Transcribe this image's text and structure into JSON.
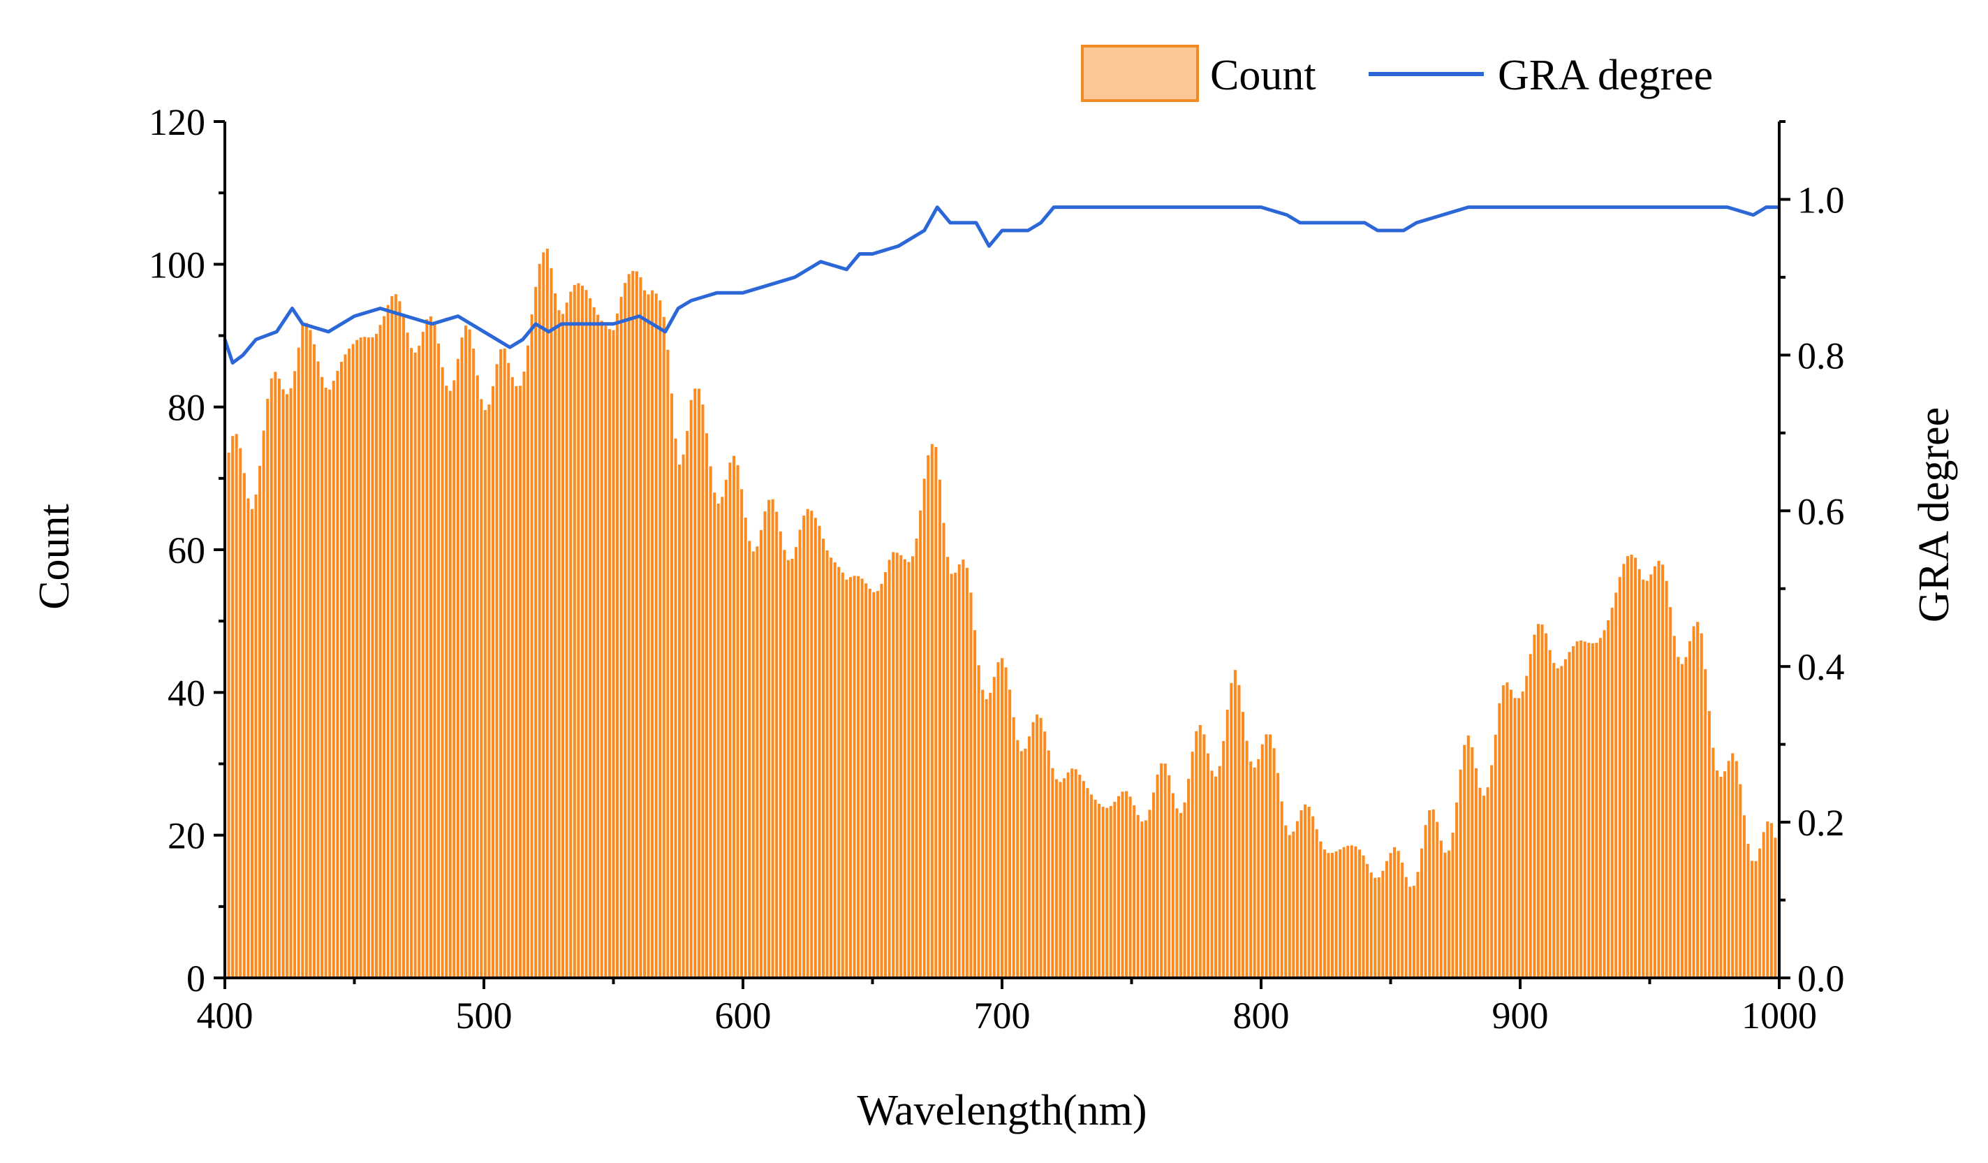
{
  "chart_data": {
    "type": "bar+line",
    "title": "",
    "xlabel": "Wavelength(nm)",
    "ylabel": "Count",
    "y2label": "GRA degree",
    "xlim": [
      400,
      1000
    ],
    "ylim": [
      0,
      120
    ],
    "y2lim": [
      0,
      1.1
    ],
    "x_ticks": [
      400,
      500,
      600,
      700,
      800,
      900,
      1000
    ],
    "y_ticks": [
      0,
      20,
      40,
      60,
      80,
      100,
      120
    ],
    "y2_ticks": [
      0.0,
      0.2,
      0.4,
      0.6,
      0.8,
      1.0
    ],
    "x_tick_labels": [
      "400",
      "500",
      "600",
      "700",
      "800",
      "900",
      "1000"
    ],
    "y_tick_labels": [
      "0",
      "20",
      "40",
      "60",
      "80",
      "100",
      "120"
    ],
    "y2_tick_labels": [
      "0.0",
      "0.2",
      "0.4",
      "0.6",
      "0.8",
      "1.0"
    ],
    "legend": {
      "position": "top-right",
      "entries": [
        "Count",
        "GRA degree"
      ]
    },
    "colors": {
      "count_fill": "#fc8a1f",
      "legend_fill": "#fbc794",
      "legend_edge": "#f08a24",
      "gra_line": "#2b67d6"
    },
    "series": [
      {
        "name": "Count",
        "type": "bar",
        "x": [
          400,
          410,
          420,
          430,
          440,
          450,
          460,
          470,
          480,
          490,
          500,
          510,
          520,
          525,
          530,
          540,
          550,
          560,
          565,
          570,
          575,
          580,
          590,
          600,
          610,
          620,
          630,
          640,
          650,
          660,
          670,
          675,
          680,
          690,
          700,
          710,
          720,
          730,
          740,
          750,
          760,
          770,
          780,
          790,
          800,
          810,
          820,
          830,
          840,
          850,
          860,
          870,
          880,
          890,
          900,
          910,
          920,
          930,
          940,
          945,
          950,
          960,
          970,
          980,
          990,
          1000
        ],
        "values": [
          72,
          70,
          82,
          90,
          84,
          88,
          93,
          93,
          88,
          87,
          85,
          83,
          94,
          102,
          95,
          96,
          91,
          101,
          97,
          88,
          76,
          80,
          72,
          66,
          63,
          62,
          64,
          55,
          56,
          57,
          68,
          72,
          62,
          47,
          40,
          35,
          31,
          27,
          25,
          24,
          26,
          28,
          32,
          38,
          33,
          24,
          21,
          18,
          17,
          15,
          17,
          21,
          29,
          32,
          44,
          47,
          45,
          48,
          56,
          60,
          58,
          50,
          44,
          28,
          21,
          16
        ]
      },
      {
        "name": "GRA degree",
        "type": "line",
        "x": [
          400,
          403,
          407,
          412,
          420,
          426,
          430,
          440,
          450,
          460,
          470,
          480,
          490,
          500,
          505,
          510,
          515,
          520,
          525,
          530,
          540,
          550,
          560,
          570,
          575,
          580,
          590,
          600,
          610,
          620,
          630,
          640,
          645,
          650,
          660,
          670,
          675,
          680,
          690,
          695,
          700,
          710,
          715,
          720,
          730,
          740,
          750,
          760,
          770,
          780,
          790,
          800,
          810,
          815,
          820,
          830,
          840,
          845,
          850,
          855,
          860,
          870,
          880,
          890,
          900,
          910,
          920,
          930,
          940,
          950,
          960,
          970,
          980,
          990,
          995,
          1000
        ],
        "values": [
          0.82,
          0.79,
          0.8,
          0.82,
          0.83,
          0.86,
          0.84,
          0.83,
          0.85,
          0.86,
          0.85,
          0.84,
          0.85,
          0.83,
          0.82,
          0.81,
          0.82,
          0.84,
          0.83,
          0.84,
          0.84,
          0.84,
          0.85,
          0.83,
          0.86,
          0.87,
          0.88,
          0.88,
          0.89,
          0.9,
          0.92,
          0.91,
          0.93,
          0.93,
          0.94,
          0.96,
          0.99,
          0.97,
          0.97,
          0.94,
          0.96,
          0.96,
          0.97,
          0.99,
          0.99,
          0.99,
          0.99,
          0.99,
          0.99,
          0.99,
          0.99,
          0.99,
          0.98,
          0.97,
          0.97,
          0.97,
          0.97,
          0.96,
          0.96,
          0.96,
          0.97,
          0.98,
          0.99,
          0.99,
          0.99,
          0.99,
          0.99,
          0.99,
          0.99,
          0.99,
          0.99,
          0.99,
          0.99,
          0.98,
          0.99,
          0.99
        ]
      }
    ]
  }
}
